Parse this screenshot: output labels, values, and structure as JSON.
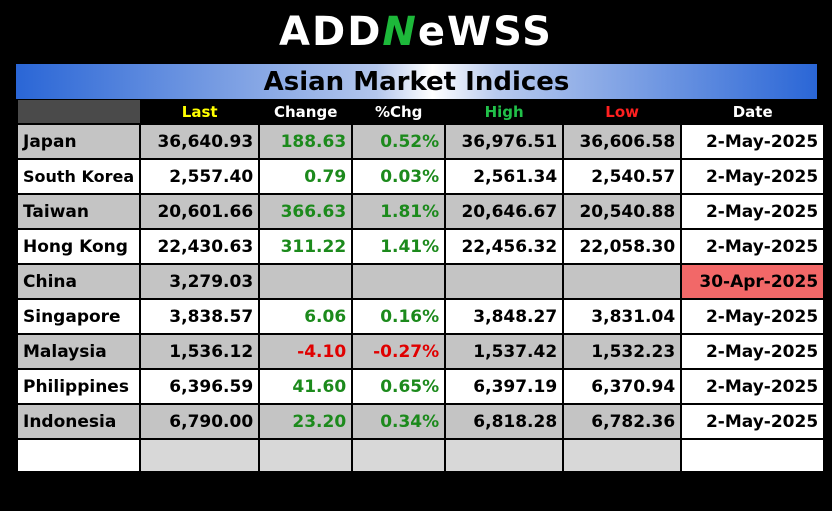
{
  "logo": {
    "part1": "ADD",
    "accent": "N",
    "part2": "eWSS"
  },
  "title": "Asian Market Indices",
  "headers": {
    "last": "Last",
    "change": "Change",
    "pct": "%Chg",
    "high": "High",
    "low": "Low",
    "date": "Date"
  },
  "colors": {
    "last": "#ffff00",
    "change": "#ffffff",
    "pct": "#ffffff",
    "high": "#21c049",
    "low": "#ff2020",
    "date": "#ffffff"
  },
  "rows": [
    {
      "country": "Japan",
      "last": "36,640.93",
      "change": "188.63",
      "pct": "0.52%",
      "high": "36,976.51",
      "low": "36,606.58",
      "date": "2-May-2025"
    },
    {
      "country": "South Korea",
      "last": "2,557.40",
      "change": "0.79",
      "pct": "0.03%",
      "high": "2,561.34",
      "low": "2,540.57",
      "date": "2-May-2025"
    },
    {
      "country": "Taiwan",
      "last": "20,601.66",
      "change": "366.63",
      "pct": "1.81%",
      "high": "20,646.67",
      "low": "20,540.88",
      "date": "2-May-2025"
    },
    {
      "country": "Hong Kong",
      "last": "22,430.63",
      "change": "311.22",
      "pct": "1.41%",
      "high": "22,456.32",
      "low": "22,058.30",
      "date": "2-May-2025"
    },
    {
      "country": "China",
      "last": "3,279.03",
      "change": "",
      "pct": "",
      "high": "",
      "low": "",
      "date": "30-Apr-2025"
    },
    {
      "country": "Singapore",
      "last": "3,838.57",
      "change": "6.06",
      "pct": "0.16%",
      "high": "3,848.27",
      "low": "3,831.04",
      "date": "2-May-2025"
    },
    {
      "country": "Malaysia",
      "last": "1,536.12",
      "change": "-4.10",
      "pct": "-0.27%",
      "high": "1,537.42",
      "low": "1,532.23",
      "date": "2-May-2025"
    },
    {
      "country": "Philippines",
      "last": "6,396.59",
      "change": "41.60",
      "pct": "0.65%",
      "high": "6,397.19",
      "low": "6,370.94",
      "date": "2-May-2025"
    },
    {
      "country": "Indonesia",
      "last": "6,790.00",
      "change": "23.20",
      "pct": "0.34%",
      "high": "6,818.28",
      "low": "6,782.36",
      "date": "2-May-2025"
    }
  ]
}
